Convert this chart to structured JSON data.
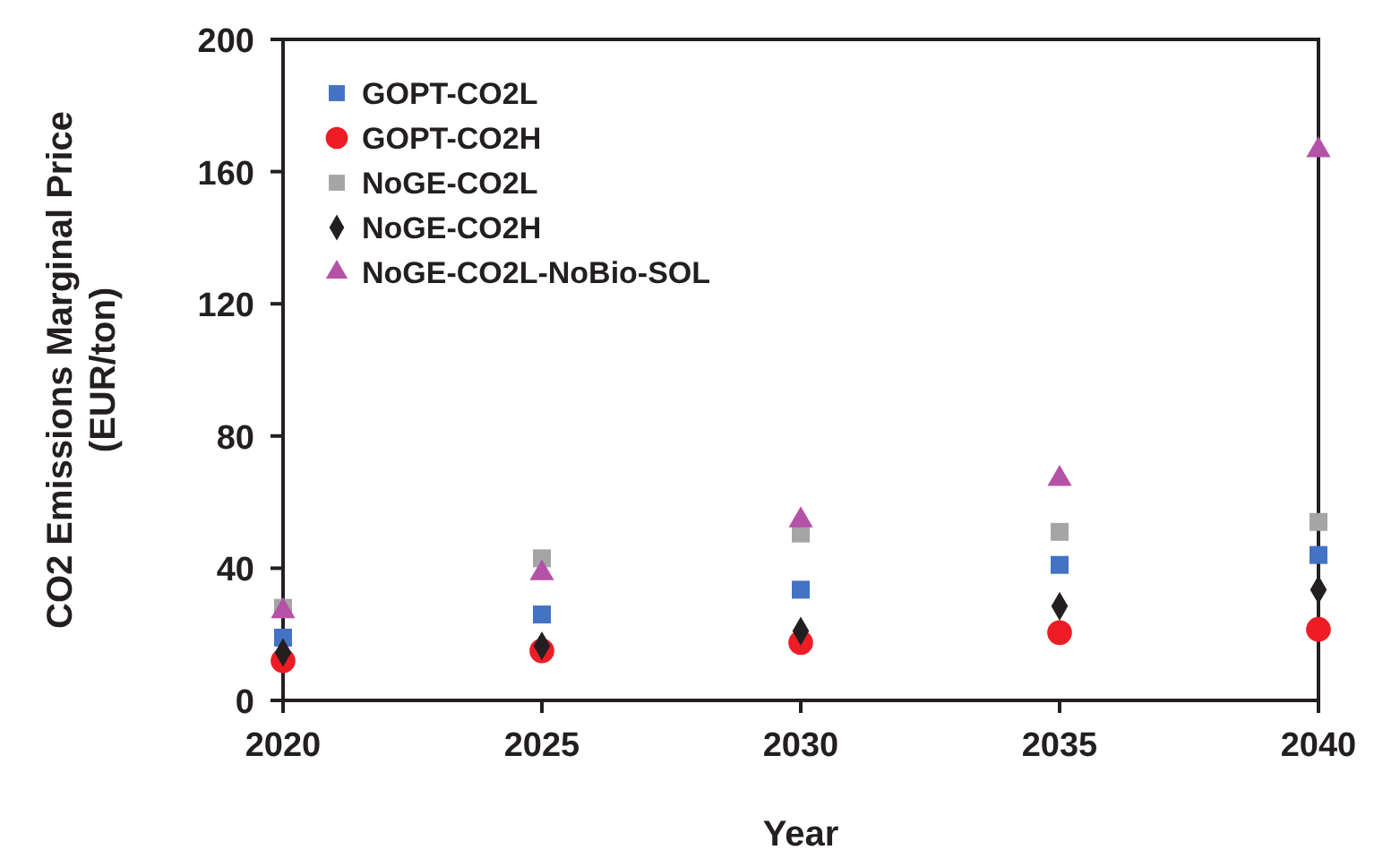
{
  "chart_data": {
    "type": "scatter",
    "xlabel": "Year",
    "ylabel": "CO2 Emissions Marginal Price\n(EUR/ton)",
    "x": [
      2020,
      2025,
      2030,
      2035,
      2040
    ],
    "xlim": [
      2020,
      2040
    ],
    "xticks": [
      2020,
      2025,
      2030,
      2035,
      2040
    ],
    "ylim": [
      0,
      200
    ],
    "yticks": [
      0,
      40,
      80,
      120,
      160,
      200
    ],
    "grid": false,
    "legend": "top left",
    "series": [
      {
        "name": "GOPT-CO2L",
        "color": "#4472c4",
        "marker": "square",
        "values": [
          19,
          26,
          33.5,
          41,
          44
        ]
      },
      {
        "name": "GOPT-CO2H",
        "color": "#ee1c25",
        "marker": "circle",
        "values": [
          12,
          15,
          17.5,
          20.5,
          21.5
        ]
      },
      {
        "name": "NoGE-CO2L",
        "color": "#a5a5a5",
        "marker": "square",
        "values": [
          28,
          43,
          50.5,
          51,
          54
        ]
      },
      {
        "name": "NoGE-CO2H",
        "color": "#231f20",
        "marker": "diamond",
        "values": [
          14.5,
          16.5,
          21,
          28.5,
          33.5
        ]
      },
      {
        "name": "NoGE-CO2L-NoBio-SOL",
        "color": "#b452a8",
        "marker": "triangle",
        "values": [
          27,
          38.5,
          54.5,
          67,
          166.5
        ]
      }
    ]
  }
}
